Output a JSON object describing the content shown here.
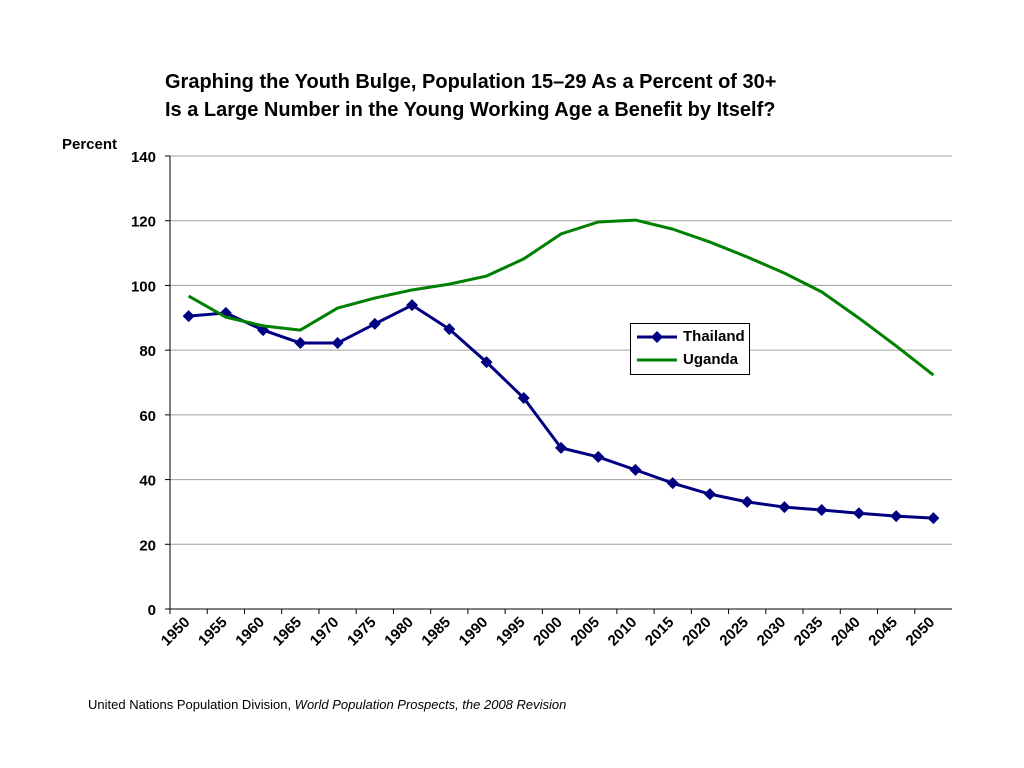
{
  "chart_data": {
    "type": "line",
    "title": [
      "Graphing the Youth Bulge, Population 15–29 As a Percent of 30+",
      "Is a Large Number in the Young Working Age a Benefit by Itself?"
    ],
    "ylabel": "Percent",
    "xlabel": "",
    "ylim": [
      0,
      140
    ],
    "yticks": [
      0,
      20,
      40,
      60,
      80,
      100,
      120,
      140
    ],
    "x": [
      1950,
      1955,
      1960,
      1965,
      1970,
      1975,
      1980,
      1985,
      1990,
      1995,
      2000,
      2005,
      2010,
      2015,
      2020,
      2025,
      2030,
      2035,
      2040,
      2045,
      2050
    ],
    "grid": true,
    "legend_position": "right-center",
    "series": [
      {
        "name": "Thailand",
        "color": "#000080",
        "marker": "diamond",
        "values": [
          90.5,
          91.5,
          86.2,
          82.2,
          82.2,
          88.1,
          93.9,
          86.5,
          76.3,
          65.2,
          49.8,
          47.0,
          43.0,
          38.9,
          35.5,
          33.1,
          31.5,
          30.6,
          29.6,
          28.7,
          28.1
        ]
      },
      {
        "name": "Uganda",
        "color": "#008000",
        "marker": "none",
        "values": [
          96.7,
          90.2,
          87.5,
          86.2,
          93.0,
          96.1,
          98.6,
          100.4,
          102.9,
          108.2,
          115.9,
          119.6,
          120.2,
          117.4,
          113.4,
          108.8,
          103.8,
          98.0,
          89.9,
          81.3,
          72.3
        ]
      }
    ]
  },
  "source": {
    "plain": "United Nations Population Division, ",
    "italic": "World Population Prospects, the 2008 Revision"
  }
}
